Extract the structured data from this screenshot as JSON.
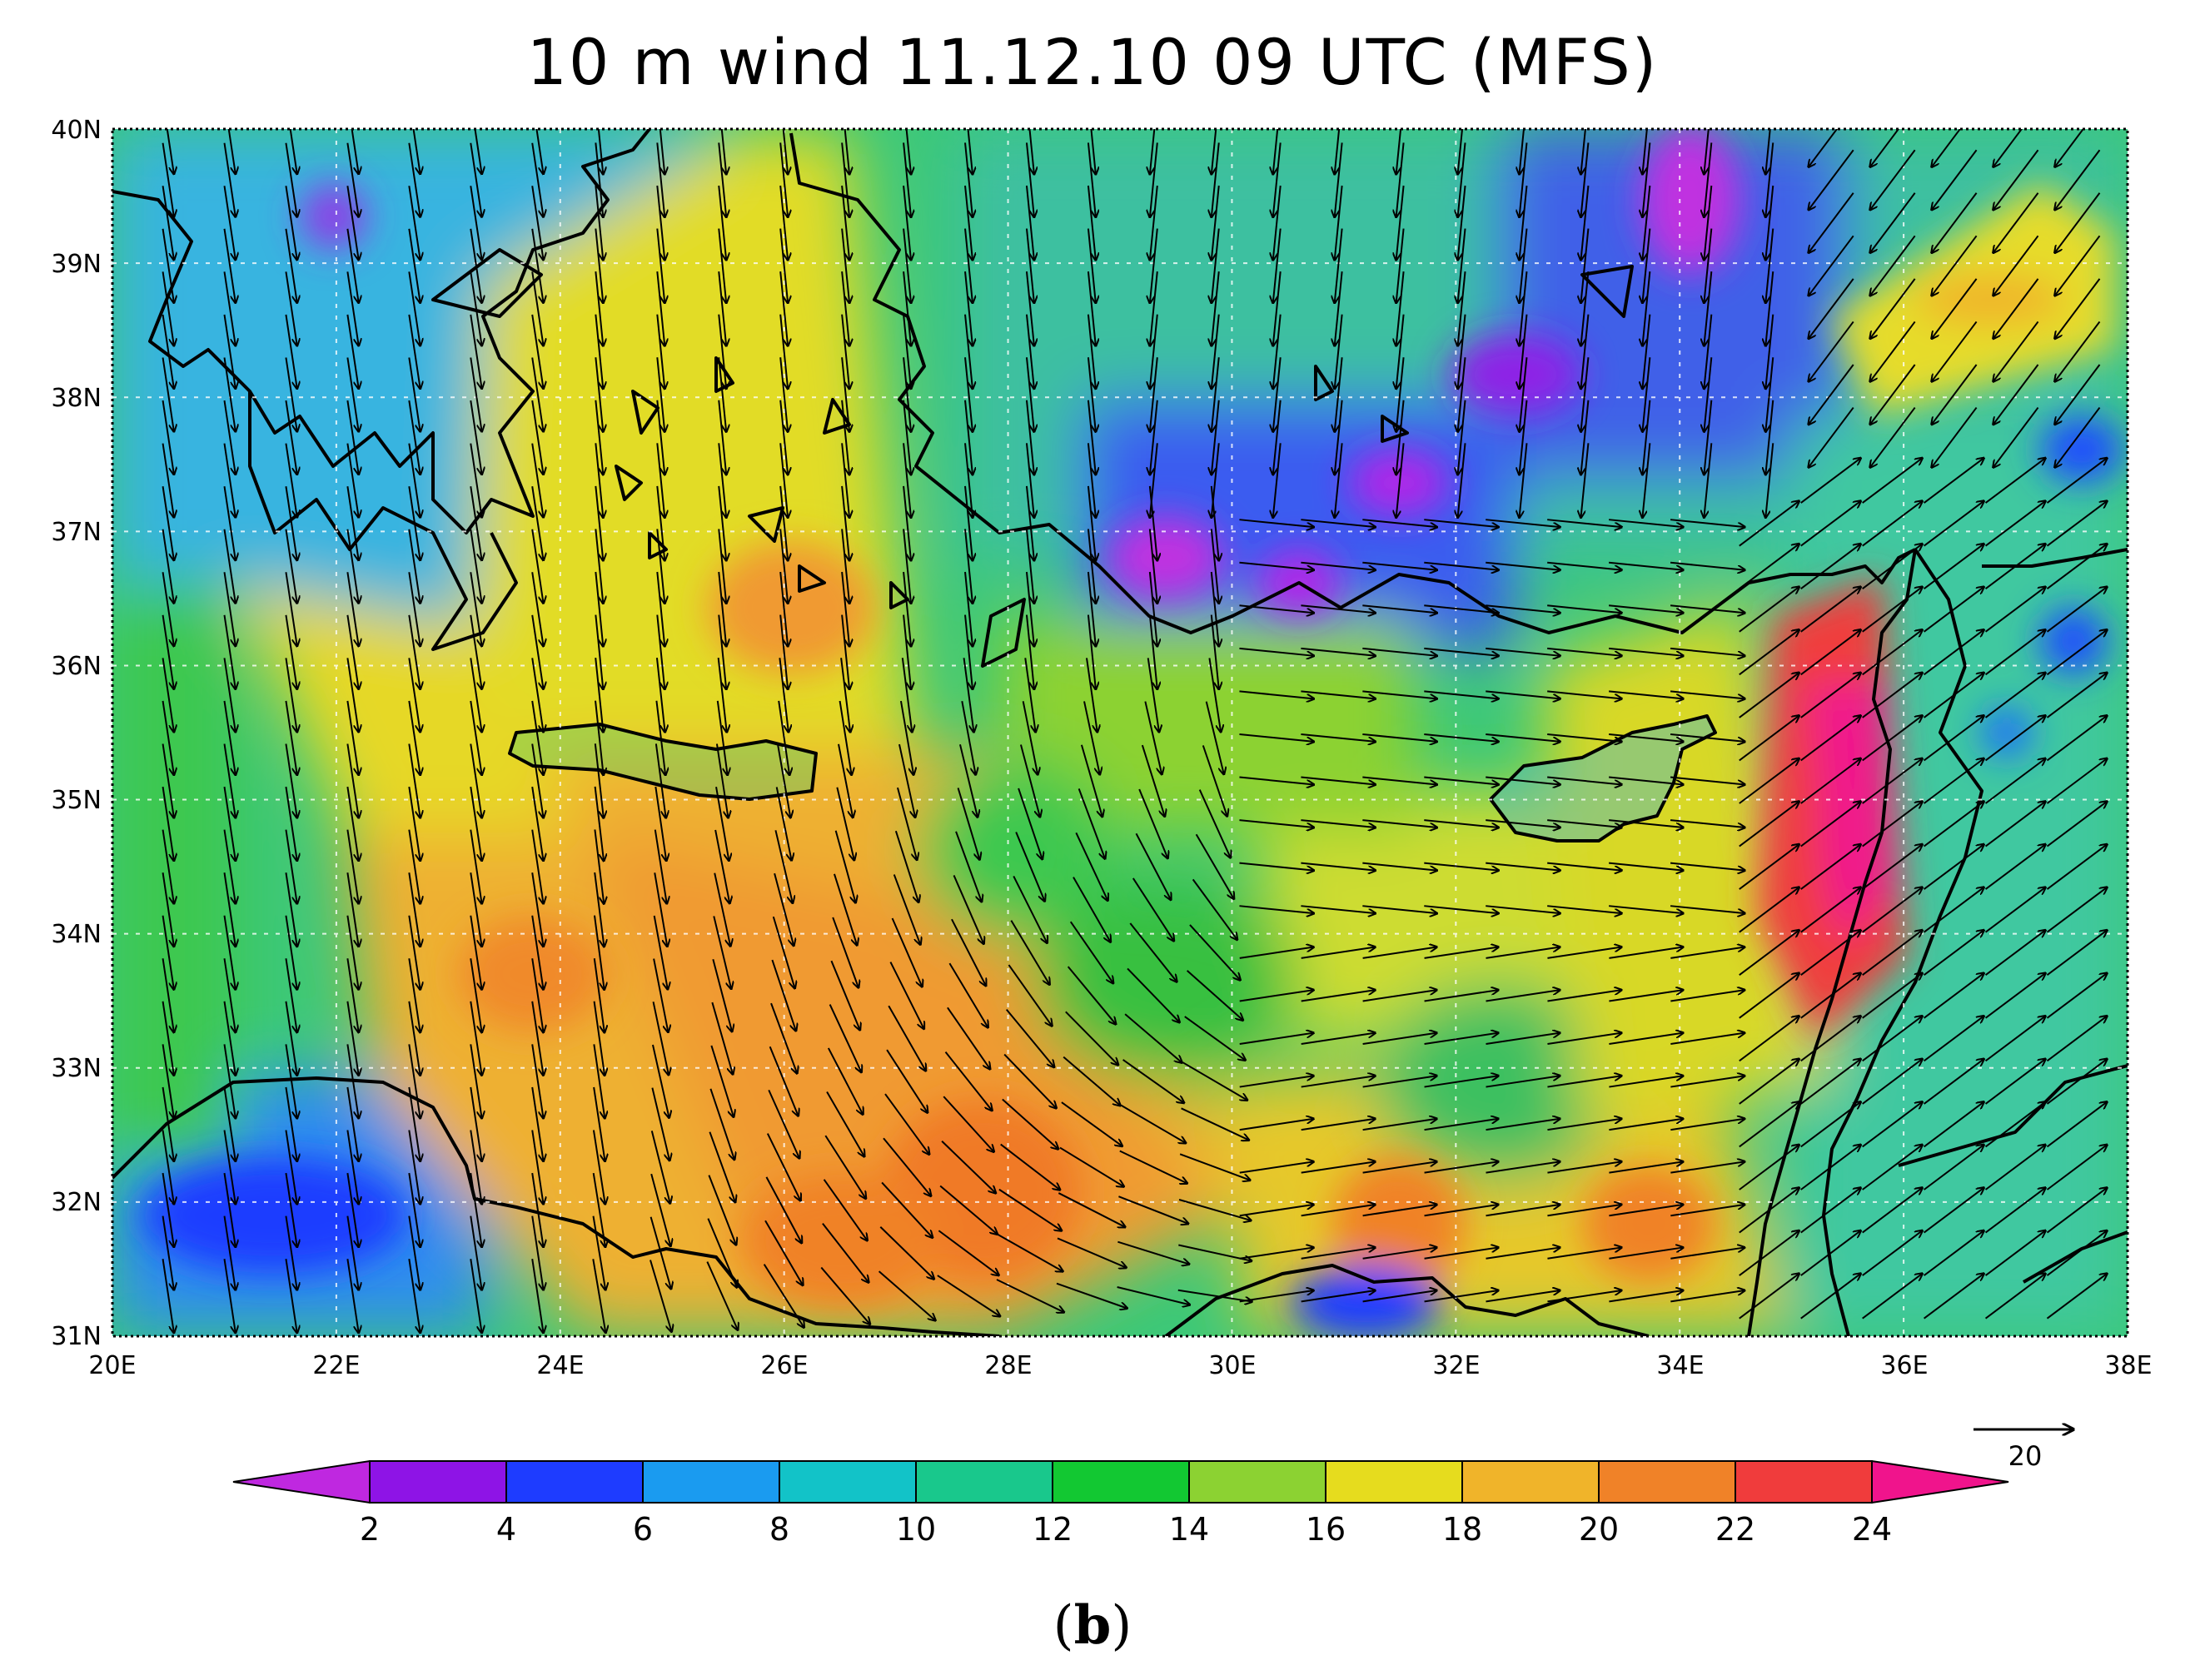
{
  "title": "10 m wind 11.12.10 09 UTC (MFS)",
  "caption": {
    "open": "(",
    "letter": "b",
    "close": ")"
  },
  "map": {
    "region": "Eastern Mediterranean",
    "lon_range": [
      20,
      38
    ],
    "lat_range": [
      31,
      40
    ],
    "lon_ticks": [
      "20E",
      "22E",
      "24E",
      "26E",
      "28E",
      "30E",
      "32E",
      "34E",
      "36E",
      "38E"
    ],
    "lat_ticks": [
      "31N",
      "32N",
      "33N",
      "34N",
      "35N",
      "36N",
      "37N",
      "38N",
      "39N",
      "40N"
    ],
    "gridlines": "dotted white, every 2° lon / 1° lat",
    "field": "wind speed shaded, wind vectors as arrows"
  },
  "reference_vector": {
    "label": "20",
    "value": 20
  },
  "colorbar": {
    "labels": [
      "2",
      "4",
      "6",
      "8",
      "10",
      "12",
      "14",
      "16",
      "18",
      "20",
      "22",
      "24"
    ],
    "colors": [
      "#bf28e0",
      "#8e14e6",
      "#1e3cff",
      "#1a9bf0",
      "#12c3c8",
      "#19c88c",
      "#12c832",
      "#8cd232",
      "#e6dc1e",
      "#f0b42a",
      "#f08228",
      "#f03c3c",
      "#f0148c"
    ]
  }
}
